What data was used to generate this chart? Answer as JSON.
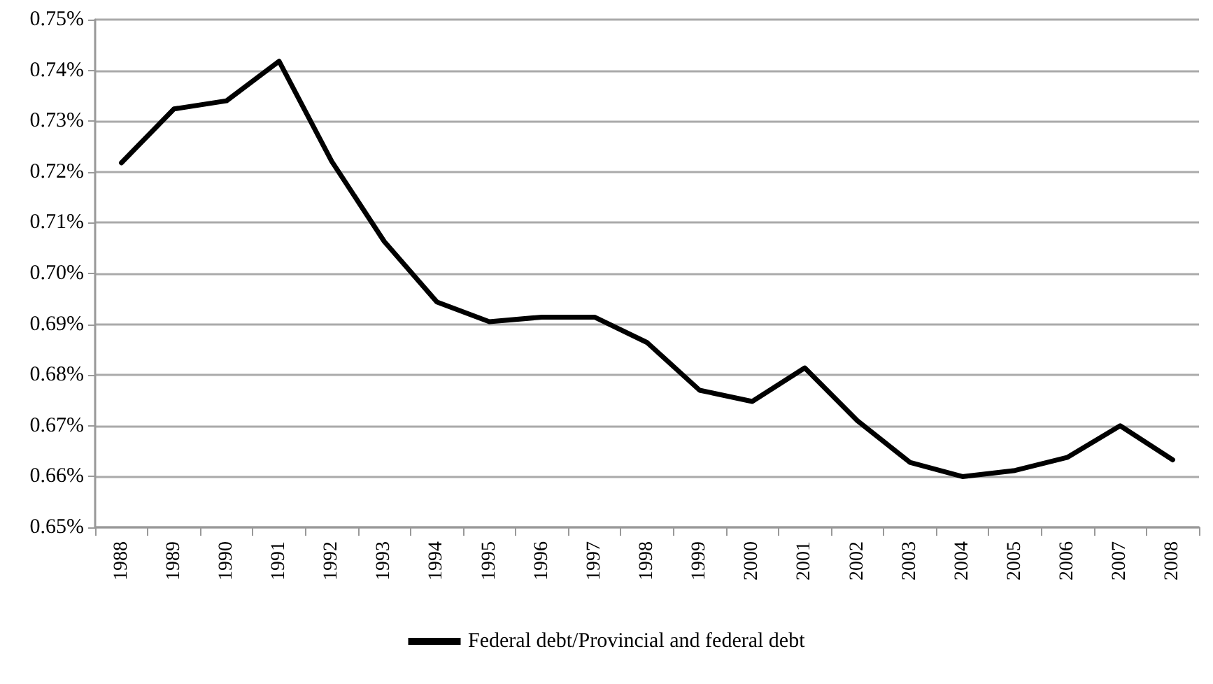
{
  "chart_data": {
    "type": "line",
    "categories": [
      "1988",
      "1989",
      "1990",
      "1991",
      "1992",
      "1993",
      "1994",
      "1995",
      "1996",
      "1997",
      "1998",
      "1999",
      "2000",
      "2001",
      "2002",
      "2003",
      "2004",
      "2005",
      "2006",
      "2007",
      "2008"
    ],
    "series": [
      {
        "name": "Federal debt/Provincial and federal debt",
        "color": "#000000",
        "values": [
          0.7218,
          0.7324,
          0.734,
          0.7418,
          0.7221,
          0.7063,
          0.6944,
          0.6905,
          0.6914,
          0.6914,
          0.6864,
          0.677,
          0.6748,
          0.6814,
          0.671,
          0.6628,
          0.66,
          0.6612,
          0.6638,
          0.67,
          0.6633
        ]
      }
    ],
    "ylim": [
      0.65,
      0.75
    ],
    "yticks": [
      {
        "value": 0.65,
        "label": "0.65%"
      },
      {
        "value": 0.66,
        "label": "0.66%"
      },
      {
        "value": 0.67,
        "label": "0.67%"
      },
      {
        "value": 0.68,
        "label": "0.68%"
      },
      {
        "value": 0.69,
        "label": "0.69%"
      },
      {
        "value": 0.7,
        "label": "0.70%"
      },
      {
        "value": 0.71,
        "label": "0.71%"
      },
      {
        "value": 0.72,
        "label": "0.72%"
      },
      {
        "value": 0.73,
        "label": "0.73%"
      },
      {
        "value": 0.74,
        "label": "0.74%"
      },
      {
        "value": 0.75,
        "label": "0.75%"
      }
    ],
    "grid": "y",
    "legend": "bottom",
    "marker": "none",
    "line_style": "solid"
  }
}
